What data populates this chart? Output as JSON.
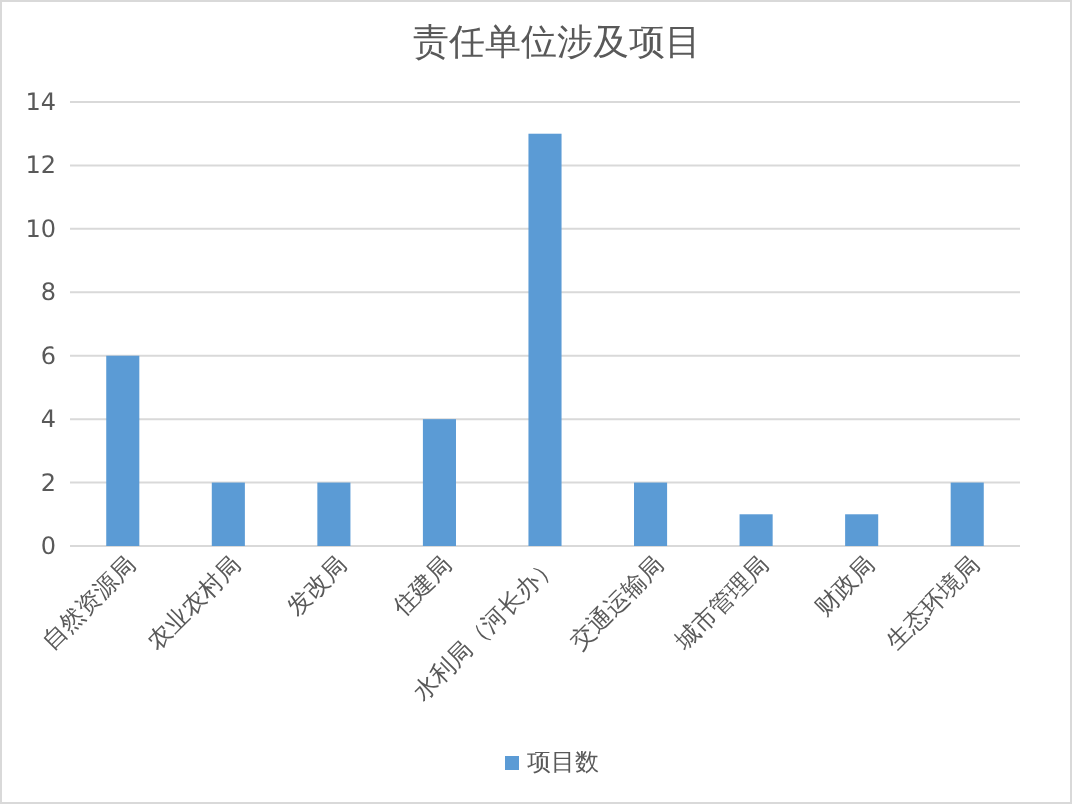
{
  "chart_data": {
    "type": "bar",
    "title": "责任单位涉及项目",
    "categories": [
      "自然资源局",
      "农业农村局",
      "发改局",
      "住建局",
      "水利局（河长办）",
      "交通运输局",
      "城市管理局",
      "财政局",
      "生态环境局"
    ],
    "series": [
      {
        "name": "项目数",
        "color": "#5b9bd5",
        "values": [
          6,
          2,
          2,
          4,
          13,
          2,
          1,
          1,
          2
        ]
      }
    ],
    "ylim": [
      0,
      14
    ],
    "yticks": [
      0,
      2,
      4,
      6,
      8,
      10,
      12,
      14
    ],
    "grid": "y",
    "legend": "bottom"
  }
}
